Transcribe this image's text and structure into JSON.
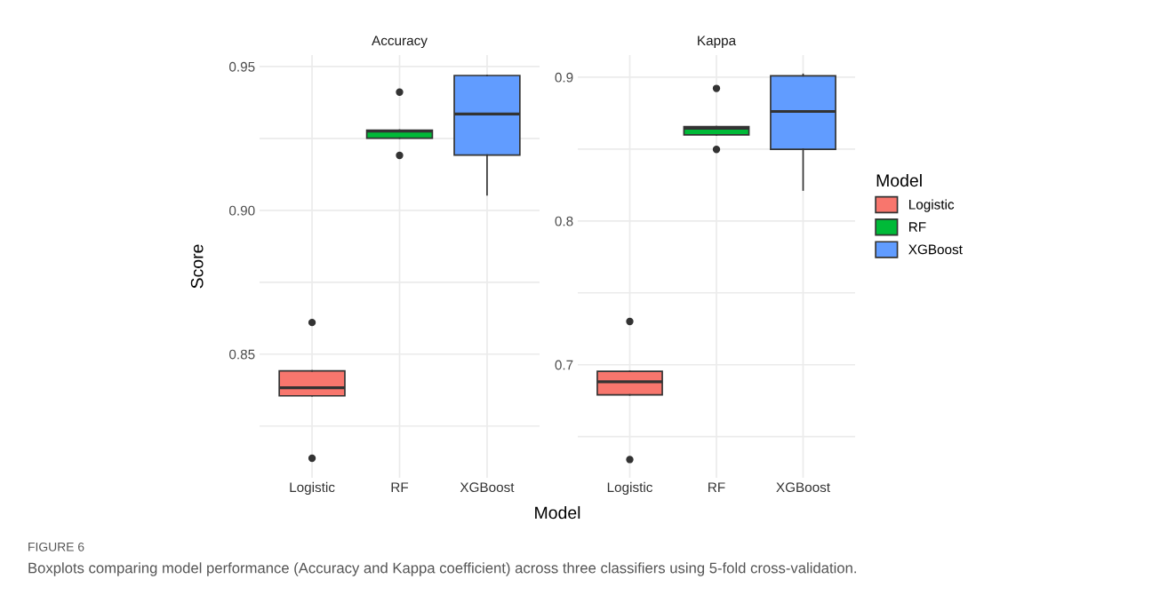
{
  "chart_data": [
    {
      "type": "box",
      "title": "Accuracy",
      "xlabel": "Model",
      "ylabel": "Score",
      "categories": [
        "Logistic",
        "RF",
        "XGBoost"
      ],
      "series": [
        {
          "color": "#f8766d",
          "boxes": [
            {
              "low": 0.8355,
              "q1": 0.8355,
              "median": 0.8383,
              "q3": 0.8442,
              "high": 0.8442,
              "outliers": [
                0.861,
                0.8138
              ]
            },
            null,
            null
          ]
        },
        {
          "color": "#00ba38",
          "boxes": [
            null,
            {
              "low": 0.9251,
              "q1": 0.9251,
              "median": 0.9275,
              "q3": 0.9279,
              "high": 0.9279,
              "outliers": [
                0.9411,
                0.9191
              ]
            },
            null
          ]
        },
        {
          "color": "#619cff",
          "boxes": [
            null,
            null,
            {
              "low": 0.9054,
              "q1": 0.9192,
              "median": 0.9335,
              "q3": 0.9469,
              "high": 0.9469
            }
          ]
        }
      ],
      "ylim": [
        0.807,
        0.954
      ],
      "yticks": [
        {
          "value": 0.825,
          "label": null
        },
        {
          "value": 0.85,
          "label": "0.85"
        },
        {
          "value": 0.875,
          "label": null
        },
        {
          "value": 0.9,
          "label": "0.90"
        },
        {
          "value": 0.925,
          "label": null
        },
        {
          "value": 0.95,
          "label": "0.95"
        }
      ],
      "grid": true,
      "annotations": [
        "FIGURE 6",
        "Boxplots comparing model performance (Accuracy and Kappa coefficient) across three classifiers using 5-fold cross-validation."
      ]
    },
    {
      "type": "box",
      "title": "Kappa",
      "categories": [
        "Logistic",
        "RF",
        "XGBoost"
      ],
      "series": [
        {
          "name": "Logistic",
          "color": "#f8766d",
          "boxes": [
            {
              "low": 0.6791,
              "q1": 0.6791,
              "median": 0.6882,
              "q3": 0.6954,
              "high": 0.6954,
              "outliers": [
                0.7301,
                0.6341
              ]
            },
            null,
            null
          ]
        },
        {
          "name": "RF",
          "color": "#00ba38",
          "boxes": [
            null,
            {
              "low": 0.8599,
              "q1": 0.8599,
              "median": 0.8644,
              "q3": 0.8657,
              "high": 0.8657,
              "outliers": [
                0.8922,
                0.8498
              ]
            },
            null
          ]
        },
        {
          "name": "XGBoost",
          "color": "#619cff",
          "boxes": [
            null,
            null,
            {
              "low": 0.8215,
              "q1": 0.8499,
              "median": 0.8762,
              "q3": 0.901,
              "high": 0.902
            }
          ]
        }
      ],
      "ylim": [
        0.6214,
        0.9154
      ],
      "yticks": [
        {
          "value": 0.65,
          "label": null
        },
        {
          "value": 0.7,
          "label": "0.7"
        },
        {
          "value": 0.75,
          "label": null
        },
        {
          "value": 0.8,
          "label": "0.8"
        },
        {
          "value": 0.85,
          "label": null
        },
        {
          "value": 0.9,
          "label": "0.9"
        }
      ],
      "grid": true,
      "legend": "right",
      "legend_title": "Model"
    }
  ]
}
